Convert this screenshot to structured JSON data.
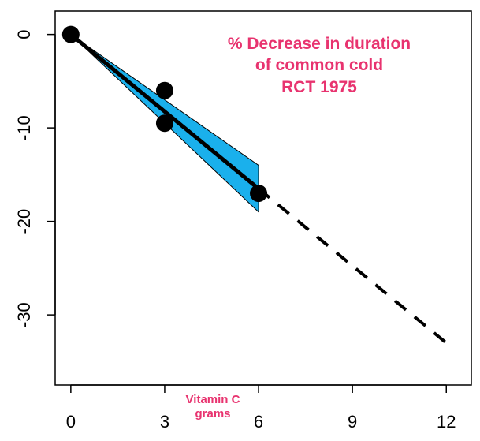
{
  "chart_data": {
    "type": "line",
    "title_lines": [
      "% Decrease in duration",
      "of common cold",
      "RCT 1975"
    ],
    "xlabel_lines": [
      "Vitamin C",
      "grams"
    ],
    "ylabel": "",
    "xlim": [
      -0.5,
      12.8
    ],
    "ylim": [
      -37.5,
      2.5
    ],
    "x_ticks": [
      0,
      3,
      6,
      9,
      12
    ],
    "y_ticks": [
      0,
      -10,
      -20,
      -30
    ],
    "points": [
      {
        "x": 0,
        "y": 0
      },
      {
        "x": 3,
        "y": -6
      },
      {
        "x": 3,
        "y": -9.5
      },
      {
        "x": 6,
        "y": -17
      }
    ],
    "fit_line": {
      "x": [
        0,
        6
      ],
      "y": [
        0,
        -16.5
      ]
    },
    "extrapolation": {
      "x": [
        6,
        12
      ],
      "y": [
        -16.5,
        -33
      ]
    },
    "confidence_band": {
      "x": [
        0,
        6
      ],
      "upper": [
        0,
        -14
      ],
      "lower": [
        0,
        -19
      ]
    },
    "colors": {
      "band_fill": "#1ab0ec",
      "line": "#000000",
      "points": "#000000",
      "annotation": "#e8336f"
    },
    "grid": false
  }
}
